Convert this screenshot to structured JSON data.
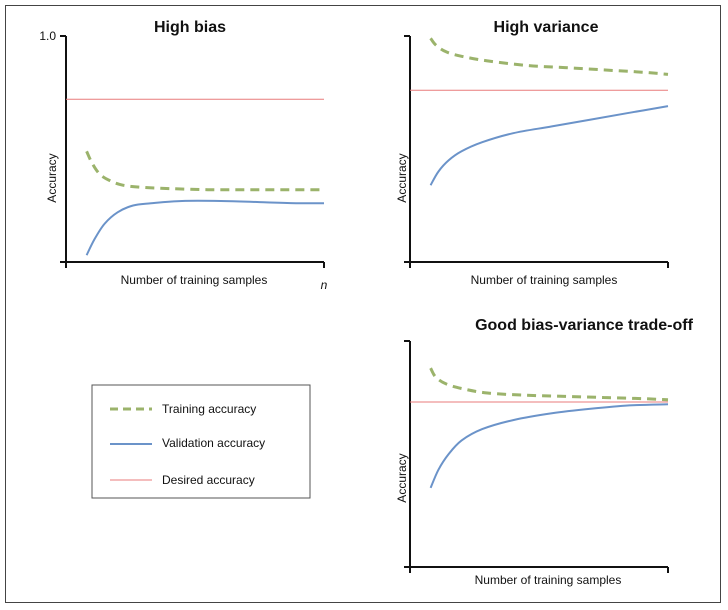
{
  "colors": {
    "training": "#9bb36b",
    "validation": "#6b93c9",
    "desired": "#e87b7b",
    "axis": "#111111"
  },
  "legend": {
    "items": [
      {
        "label": "Training accuracy",
        "style": "dashed",
        "color_key": "training"
      },
      {
        "label": "Validation accuracy",
        "style": "solid",
        "color_key": "validation"
      },
      {
        "label": "Desired accuracy",
        "style": "dotted",
        "color_key": "desired"
      }
    ]
  },
  "chart_data": [
    {
      "type": "line",
      "title": "High bias",
      "xlabel": "Number of training samples",
      "ylabel": "Accuracy",
      "xlim": [
        0,
        1
      ],
      "ylim": [
        0,
        1
      ],
      "x_end_label": "n",
      "y_tick_label": "1.0",
      "y_tick_value": 1.0,
      "desired": 0.72,
      "series": [
        {
          "name": "Training accuracy",
          "x": [
            0.08,
            0.1,
            0.13,
            0.17,
            0.22,
            0.3,
            0.4,
            0.55,
            0.7,
            0.85,
            1.0
          ],
          "y": [
            0.49,
            0.44,
            0.39,
            0.36,
            0.34,
            0.33,
            0.325,
            0.32,
            0.32,
            0.32,
            0.32
          ]
        },
        {
          "name": "Validation accuracy",
          "x": [
            0.08,
            0.11,
            0.15,
            0.2,
            0.26,
            0.33,
            0.45,
            0.6,
            0.75,
            0.9,
            1.0
          ],
          "y": [
            0.03,
            0.1,
            0.17,
            0.22,
            0.25,
            0.26,
            0.27,
            0.27,
            0.265,
            0.26,
            0.26
          ]
        }
      ]
    },
    {
      "type": "line",
      "title": "High variance",
      "xlabel": "Number of training samples",
      "ylabel": "Accuracy",
      "xlim": [
        0,
        1
      ],
      "ylim": [
        0,
        1
      ],
      "desired": 0.76,
      "series": [
        {
          "name": "Training accuracy",
          "x": [
            0.08,
            0.1,
            0.14,
            0.2,
            0.3,
            0.45,
            0.6,
            0.75,
            0.9,
            1.0
          ],
          "y": [
            0.99,
            0.96,
            0.93,
            0.91,
            0.89,
            0.87,
            0.86,
            0.85,
            0.84,
            0.83
          ]
        },
        {
          "name": "Validation accuracy",
          "x": [
            0.08,
            0.11,
            0.15,
            0.2,
            0.28,
            0.4,
            0.55,
            0.7,
            0.85,
            1.0
          ],
          "y": [
            0.34,
            0.4,
            0.45,
            0.49,
            0.53,
            0.57,
            0.6,
            0.63,
            0.66,
            0.69
          ]
        }
      ]
    },
    {
      "type": "line",
      "title": "Good bias-variance trade-off",
      "xlabel": "Number of training samples",
      "ylabel": "Accuracy",
      "xlim": [
        0,
        1
      ],
      "ylim": [
        0,
        1
      ],
      "desired": 0.73,
      "series": [
        {
          "name": "Training accuracy",
          "x": [
            0.08,
            0.1,
            0.14,
            0.2,
            0.3,
            0.45,
            0.6,
            0.75,
            0.9,
            1.0
          ],
          "y": [
            0.88,
            0.84,
            0.81,
            0.79,
            0.77,
            0.76,
            0.755,
            0.75,
            0.745,
            0.74
          ]
        },
        {
          "name": "Validation accuracy",
          "x": [
            0.08,
            0.11,
            0.15,
            0.2,
            0.28,
            0.4,
            0.55,
            0.7,
            0.85,
            1.0
          ],
          "y": [
            0.35,
            0.43,
            0.5,
            0.56,
            0.61,
            0.65,
            0.68,
            0.7,
            0.715,
            0.72
          ]
        }
      ]
    }
  ]
}
